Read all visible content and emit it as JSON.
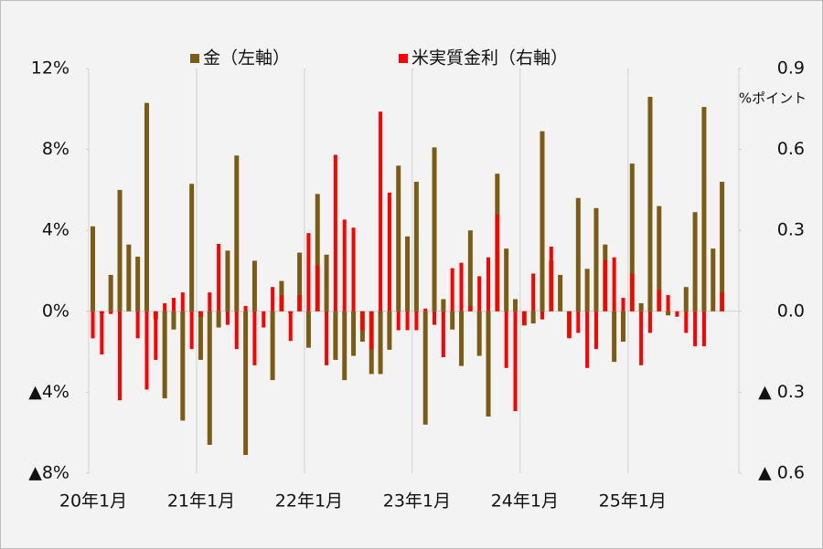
{
  "chart_data": {
    "type": "bar",
    "y2_unit": "%ポイント",
    "categories": [
      "20年1月",
      null,
      null,
      null,
      null,
      null,
      null,
      null,
      null,
      null,
      null,
      null,
      "21年1月",
      null,
      null,
      null,
      null,
      null,
      null,
      null,
      null,
      null,
      null,
      null,
      "22年1月",
      null,
      null,
      null,
      null,
      null,
      null,
      null,
      null,
      null,
      null,
      null,
      "23年1月",
      null,
      null,
      null,
      null,
      null,
      null,
      null,
      null,
      null,
      null,
      null,
      "24年1月",
      null,
      null,
      null,
      null,
      null,
      null,
      null,
      null,
      null,
      null,
      null,
      "25年1月",
      null,
      null,
      null,
      null,
      null,
      null,
      null,
      null,
      null,
      null
    ],
    "series": [
      {
        "name": "金（左軸）",
        "color": "#7b5c14",
        "axis": "y",
        "values": [
          4.2,
          -0.1,
          1.8,
          6.0,
          3.3,
          2.7,
          10.3,
          -0.4,
          -4.3,
          -0.9,
          -5.4,
          6.3,
          -2.4,
          -6.6,
          -0.8,
          3.0,
          7.7,
          -7.1,
          2.5,
          0.0,
          -3.4,
          1.5,
          -0.1,
          2.9,
          -1.8,
          5.8,
          2.8,
          -2.4,
          -3.4,
          -2.2,
          -1.5,
          -3.1,
          -3.1,
          -1.9,
          7.2,
          3.7,
          6.4,
          -5.6,
          8.1,
          0.6,
          -0.9,
          -2.7,
          4.0,
          -2.2,
          -5.2,
          6.8,
          3.1,
          0.6,
          -0.7,
          -0.6,
          8.9,
          2.5,
          1.8,
          -1.3,
          5.6,
          2.1,
          5.1,
          3.3,
          -2.5,
          -1.5,
          7.3,
          0.4,
          10.6,
          5.2,
          -0.2,
          0.0,
          1.2,
          4.9,
          10.1,
          3.1,
          6.4
        ]
      },
      {
        "name": "米実質金利（右軸）",
        "color": "#ff0000",
        "axis": "y2",
        "values": [
          -0.1,
          -0.16,
          -0.01,
          -0.33,
          0.0,
          -0.1,
          -0.29,
          -0.18,
          0.03,
          0.05,
          0.07,
          -0.14,
          -0.02,
          0.07,
          0.25,
          -0.05,
          -0.14,
          0.02,
          -0.2,
          -0.06,
          0.09,
          0.06,
          -0.11,
          0.06,
          0.29,
          0.17,
          -0.2,
          0.58,
          0.34,
          0.31,
          -0.07,
          -0.14,
          0.74,
          0.44,
          -0.07,
          -0.07,
          -0.07,
          0.01,
          -0.05,
          -0.17,
          0.16,
          0.18,
          0.02,
          0.13,
          0.2,
          0.36,
          -0.21,
          -0.37,
          -0.05,
          0.14,
          -0.03,
          0.24,
          0.0,
          -0.1,
          -0.08,
          -0.21,
          -0.14,
          0.19,
          0.2,
          0.05,
          0.14,
          -0.2,
          -0.08,
          0.08,
          0.06,
          -0.02,
          -0.08,
          -0.13,
          -0.13,
          0.0,
          0.07
        ]
      }
    ],
    "ylim": [
      -8,
      12
    ],
    "yticks": [
      {
        "value": -8,
        "label": "▲8%"
      },
      {
        "value": -4,
        "label": "▲4%"
      },
      {
        "value": 0,
        "label": "0%"
      },
      {
        "value": 4,
        "label": "4%"
      },
      {
        "value": 8,
        "label": "8%"
      },
      {
        "value": 12,
        "label": "12%"
      }
    ],
    "y2lim": [
      -0.6,
      0.9
    ],
    "y2ticks": [
      {
        "value": -0.6,
        "label": "▲ 0.6"
      },
      {
        "value": -0.3,
        "label": "▲ 0.3"
      },
      {
        "value": 0,
        "label": "0.0"
      },
      {
        "value": 0.3,
        "label": "0.3"
      },
      {
        "value": 0.6,
        "label": "0.6"
      },
      {
        "value": 0.9,
        "label": "0.9"
      }
    ],
    "legend": "top"
  }
}
